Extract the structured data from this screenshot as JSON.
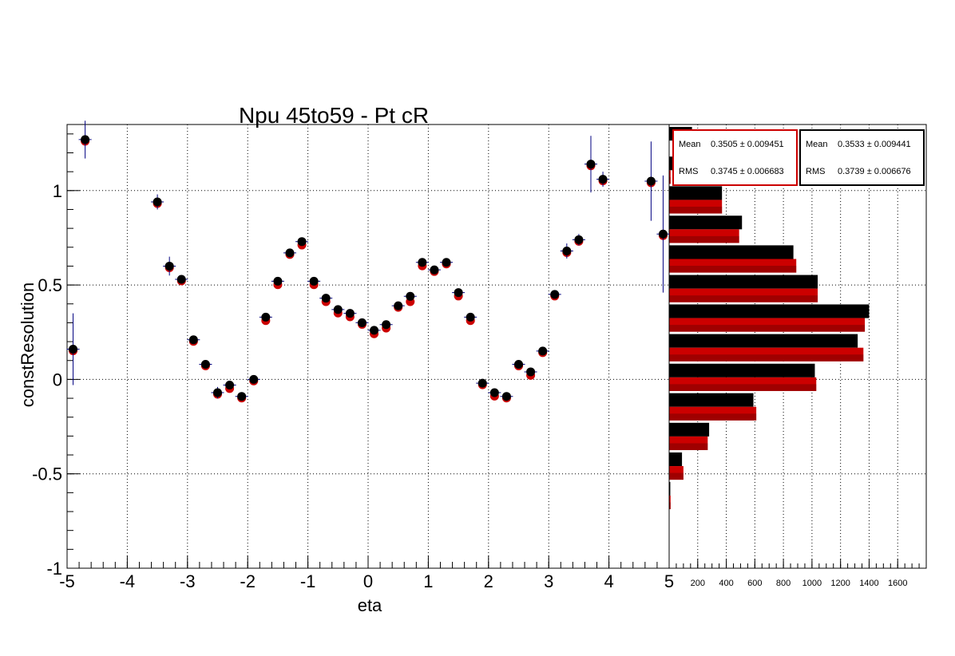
{
  "chart_data": [
    {
      "type": "scatter",
      "title": "Npu 45to59 - Pt cR",
      "xlabel": "eta",
      "ylabel": "constResolution",
      "xlim": [
        -5,
        5
      ],
      "ylim": [
        -1,
        1.35
      ],
      "x_ticks": [
        "-5",
        "-4",
        "-3",
        "-2",
        "-1",
        "0",
        "1",
        "2",
        "3",
        "4",
        "5"
      ],
      "y_ticks": [
        "-1",
        "-0.5",
        "0",
        "0.5",
        "1"
      ],
      "grid": true,
      "colors": {
        "series_black": "#000000",
        "series_red": "#cc0000",
        "error_bars": "#000080"
      },
      "series": [
        {
          "color": "#cc0000",
          "points": [
            {
              "x": -4.9,
              "y": 0.16,
              "err": 0.19
            },
            {
              "x": -4.7,
              "y": 1.27,
              "err": 0.1
            },
            {
              "x": -3.5,
              "y": 0.94,
              "err": 0.04
            },
            {
              "x": -3.3,
              "y": 0.6,
              "err": 0.05
            },
            {
              "x": -3.1,
              "y": 0.53,
              "err": 0.02
            },
            {
              "x": -2.9,
              "y": 0.21,
              "err": 0.01
            },
            {
              "x": -2.7,
              "y": 0.08,
              "err": 0.01
            },
            {
              "x": -2.5,
              "y": -0.07,
              "err": 0.03
            },
            {
              "x": -2.3,
              "y": -0.04,
              "err": 0.02
            },
            {
              "x": -2.1,
              "y": -0.09,
              "err": 0.01
            },
            {
              "x": -1.9,
              "y": 0.0,
              "err": 0.01
            },
            {
              "x": -1.7,
              "y": 0.32,
              "err": 0.01
            },
            {
              "x": -1.5,
              "y": 0.51,
              "err": 0.01
            },
            {
              "x": -1.3,
              "y": 0.67,
              "err": 0.01
            },
            {
              "x": -1.1,
              "y": 0.72,
              "err": 0.01
            },
            {
              "x": -0.9,
              "y": 0.51,
              "err": 0.01
            },
            {
              "x": -0.7,
              "y": 0.42,
              "err": 0.01
            },
            {
              "x": -0.5,
              "y": 0.36,
              "err": 0.01
            },
            {
              "x": -0.3,
              "y": 0.34,
              "err": 0.01
            },
            {
              "x": -0.1,
              "y": 0.3,
              "err": 0.01
            },
            {
              "x": 0.1,
              "y": 0.25,
              "err": 0.01
            },
            {
              "x": 0.3,
              "y": 0.28,
              "err": 0.01
            },
            {
              "x": 0.5,
              "y": 0.39,
              "err": 0.01
            },
            {
              "x": 0.7,
              "y": 0.42,
              "err": 0.01
            },
            {
              "x": 0.9,
              "y": 0.61,
              "err": 0.01
            },
            {
              "x": 1.1,
              "y": 0.58,
              "err": 0.01
            },
            {
              "x": 1.3,
              "y": 0.62,
              "err": 0.01
            },
            {
              "x": 1.5,
              "y": 0.45,
              "err": 0.01
            },
            {
              "x": 1.7,
              "y": 0.32,
              "err": 0.01
            },
            {
              "x": 1.9,
              "y": -0.02,
              "err": 0.01
            },
            {
              "x": 2.1,
              "y": -0.08,
              "err": 0.01
            },
            {
              "x": 2.3,
              "y": -0.09,
              "err": 0.01
            },
            {
              "x": 2.5,
              "y": 0.08,
              "err": 0.01
            },
            {
              "x": 2.7,
              "y": 0.03,
              "err": 0.01
            },
            {
              "x": 2.9,
              "y": 0.15,
              "err": 0.01
            },
            {
              "x": 3.1,
              "y": 0.45,
              "err": 0.01
            },
            {
              "x": 3.3,
              "y": 0.68,
              "err": 0.04
            },
            {
              "x": 3.5,
              "y": 0.74,
              "err": 0.03
            },
            {
              "x": 3.7,
              "y": 1.14,
              "err": 0.15
            },
            {
              "x": 3.9,
              "y": 1.06,
              "err": 0.04
            },
            {
              "x": 4.7,
              "y": 1.05,
              "err": 0.21
            },
            {
              "x": 4.9,
              "y": 0.77,
              "err": 0.31
            }
          ]
        },
        {
          "color": "#000000",
          "points": [
            {
              "x": -4.9,
              "y": 0.16,
              "err": 0.19
            },
            {
              "x": -4.7,
              "y": 1.27,
              "err": 0.1
            },
            {
              "x": -3.5,
              "y": 0.94,
              "err": 0.04
            },
            {
              "x": -3.3,
              "y": 0.6,
              "err": 0.05
            },
            {
              "x": -3.1,
              "y": 0.53,
              "err": 0.02
            },
            {
              "x": -2.9,
              "y": 0.21,
              "err": 0.01
            },
            {
              "x": -2.7,
              "y": 0.08,
              "err": 0.01
            },
            {
              "x": -2.5,
              "y": -0.07,
              "err": 0.03
            },
            {
              "x": -2.3,
              "y": -0.03,
              "err": 0.02
            },
            {
              "x": -2.1,
              "y": -0.09,
              "err": 0.01
            },
            {
              "x": -1.9,
              "y": 0.0,
              "err": 0.01
            },
            {
              "x": -1.7,
              "y": 0.33,
              "err": 0.01
            },
            {
              "x": -1.5,
              "y": 0.52,
              "err": 0.01
            },
            {
              "x": -1.3,
              "y": 0.67,
              "err": 0.01
            },
            {
              "x": -1.1,
              "y": 0.73,
              "err": 0.01
            },
            {
              "x": -0.9,
              "y": 0.52,
              "err": 0.01
            },
            {
              "x": -0.7,
              "y": 0.43,
              "err": 0.01
            },
            {
              "x": -0.5,
              "y": 0.37,
              "err": 0.01
            },
            {
              "x": -0.3,
              "y": 0.35,
              "err": 0.01
            },
            {
              "x": -0.1,
              "y": 0.3,
              "err": 0.01
            },
            {
              "x": 0.1,
              "y": 0.26,
              "err": 0.01
            },
            {
              "x": 0.3,
              "y": 0.29,
              "err": 0.01
            },
            {
              "x": 0.5,
              "y": 0.39,
              "err": 0.01
            },
            {
              "x": 0.7,
              "y": 0.44,
              "err": 0.01
            },
            {
              "x": 0.9,
              "y": 0.62,
              "err": 0.01
            },
            {
              "x": 1.1,
              "y": 0.58,
              "err": 0.01
            },
            {
              "x": 1.3,
              "y": 0.62,
              "err": 0.01
            },
            {
              "x": 1.5,
              "y": 0.46,
              "err": 0.01
            },
            {
              "x": 1.7,
              "y": 0.33,
              "err": 0.01
            },
            {
              "x": 1.9,
              "y": -0.02,
              "err": 0.01
            },
            {
              "x": 2.1,
              "y": -0.07,
              "err": 0.01
            },
            {
              "x": 2.3,
              "y": -0.09,
              "err": 0.01
            },
            {
              "x": 2.5,
              "y": 0.08,
              "err": 0.01
            },
            {
              "x": 2.7,
              "y": 0.04,
              "err": 0.01
            },
            {
              "x": 2.9,
              "y": 0.15,
              "err": 0.01
            },
            {
              "x": 3.1,
              "y": 0.45,
              "err": 0.01
            },
            {
              "x": 3.3,
              "y": 0.68,
              "err": 0.04
            },
            {
              "x": 3.5,
              "y": 0.74,
              "err": 0.03
            },
            {
              "x": 3.7,
              "y": 1.14,
              "err": 0.15
            },
            {
              "x": 3.9,
              "y": 1.06,
              "err": 0.04
            },
            {
              "x": 4.7,
              "y": 1.05,
              "err": 0.21
            },
            {
              "x": 4.9,
              "y": 0.77,
              "err": 0.31
            }
          ]
        }
      ]
    },
    {
      "type": "bar",
      "orientation": "horizontal",
      "xlim": [
        0,
        1800
      ],
      "x_ticks": [
        "200",
        "400",
        "600",
        "800",
        "1000",
        "1200",
        "1400",
        "1600"
      ],
      "ylim": [
        -1,
        1.35
      ],
      "bin_width": 0.157,
      "bin_centers": [
        1.267,
        1.11,
        0.953,
        0.797,
        0.64,
        0.483,
        0.327,
        0.17,
        0.013,
        -0.143,
        -0.3,
        -0.457,
        -0.613
      ],
      "series": [
        {
          "color": "#000000",
          "values": [
            160,
            40,
            370,
            510,
            870,
            1040,
            1400,
            1320,
            1020,
            590,
            280,
            90,
            8
          ]
        },
        {
          "color": "#cc0000",
          "values": [
            0,
            10,
            370,
            490,
            890,
            1040,
            1370,
            1360,
            1030,
            610,
            270,
            100,
            10
          ]
        }
      ],
      "stats": [
        {
          "mean_label": "Mean",
          "mean_value": "0.3505 ± 0.009451",
          "rms_label": "RMS",
          "rms_value": "0.3745 ± 0.006683",
          "border_color": "#cc0000"
        },
        {
          "mean_label": "Mean",
          "mean_value": "0.3533 ± 0.009441",
          "rms_label": "RMS",
          "rms_value": "0.3739 ± 0.006676",
          "border_color": "#000000"
        }
      ]
    }
  ]
}
